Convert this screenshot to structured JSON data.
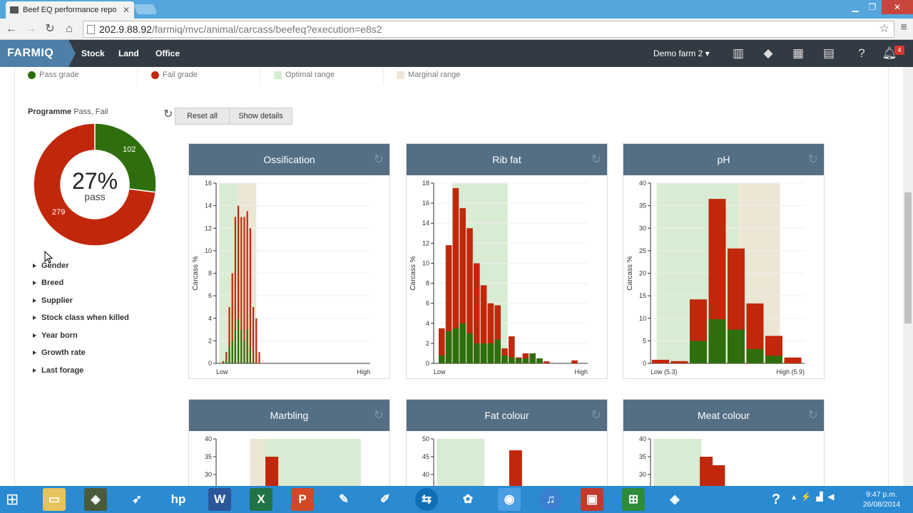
{
  "browser": {
    "tab_title": "Beef EQ performance repo",
    "url_host": "202.9.88.92",
    "url_path": "/farmiq/mvc/animal/carcass/beefeq?execution=e8s2"
  },
  "app": {
    "logo": "FARMIQ",
    "nav": [
      "Stock",
      "Land",
      "Office"
    ],
    "farm": "Demo farm 2",
    "notification_count": "4"
  },
  "legend": [
    "Pass grade",
    "Fail grade",
    "Optimal range",
    "Marginal range"
  ],
  "colors": {
    "pass": "#2f6e0c",
    "fail": "#c1280b",
    "optimal": "#d8ecd3",
    "marginal": "#ece6d4",
    "header": "#546e84"
  },
  "programme": {
    "label": "Programme",
    "value": "Pass, Fail"
  },
  "donut": {
    "pass_count": "102",
    "fail_count": "279",
    "percent": "27%",
    "caption": "pass",
    "pass_fraction": 0.27
  },
  "filters": [
    "Gender",
    "Breed",
    "Supplier",
    "Stock class when killed",
    "Year born",
    "Growth rate",
    "Last forage"
  ],
  "buttons": {
    "reset": "Reset all",
    "details": "Show details"
  },
  "chart_data": [
    {
      "type": "bar",
      "title": "Ossification",
      "ylabel": "Carcass %",
      "x_labels": [
        "Low",
        "High"
      ],
      "ylim": [
        0,
        16
      ],
      "yticks": [
        0,
        2,
        4,
        6,
        8,
        10,
        12,
        14,
        16
      ],
      "bars": [
        [
          0,
          0.2
        ],
        [
          0.2,
          1
        ],
        [
          1.5,
          5
        ],
        [
          2,
          8
        ],
        [
          3,
          13
        ],
        [
          4,
          14
        ],
        [
          3,
          13
        ],
        [
          2,
          13
        ],
        [
          3,
          13.5
        ],
        [
          1.5,
          12
        ],
        [
          0.2,
          5
        ],
        [
          0,
          4
        ],
        [
          0,
          1
        ]
      ],
      "optimal_frac": [
        0.02,
        0.14
      ],
      "marginal_frac": [
        0.14,
        0.26
      ]
    },
    {
      "type": "bar",
      "title": "Rib fat",
      "ylabel": "Carcass %",
      "x_labels": [
        "Low",
        "High"
      ],
      "ylim": [
        0,
        18
      ],
      "yticks": [
        0,
        2,
        4,
        6,
        8,
        10,
        12,
        14,
        16,
        18
      ],
      "bars": [
        [
          0.8,
          3.5
        ],
        [
          3.2,
          11.8
        ],
        [
          3.5,
          17.5
        ],
        [
          4,
          15.5
        ],
        [
          3,
          13.5
        ],
        [
          2,
          10
        ],
        [
          2,
          7.8
        ],
        [
          2,
          6
        ],
        [
          2.4,
          5.8
        ],
        [
          0.8,
          1.5
        ],
        [
          0.6,
          2.7
        ],
        [
          0.5,
          0.6
        ],
        [
          0.5,
          1
        ],
        [
          1,
          1
        ],
        [
          0.5,
          0.5
        ],
        [
          0,
          0.2
        ],
        [
          0,
          0
        ],
        [
          0,
          0
        ],
        [
          0,
          0
        ],
        [
          0,
          0.3
        ]
      ],
      "optimal_frac": [
        0.12,
        0.48
      ],
      "marginal_frac": null
    },
    {
      "type": "bar",
      "title": "pH",
      "ylabel": "Carcass %",
      "x_labels": [
        "Low (5.3)",
        "High (5.9)"
      ],
      "ylim": [
        0,
        40
      ],
      "yticks": [
        0,
        5,
        10,
        15,
        20,
        25,
        30,
        35,
        40
      ],
      "bars": [
        [
          0,
          0.8
        ],
        [
          0,
          0.5
        ],
        [
          5,
          14.2
        ],
        [
          9.8,
          36.5
        ],
        [
          7.5,
          25.5
        ],
        [
          3.2,
          13.3
        ],
        [
          1.7,
          6.1
        ],
        [
          0,
          1.3
        ]
      ],
      "optimal_frac": [
        0.04,
        0.57
      ],
      "marginal_frac": [
        0.57,
        0.84
      ]
    },
    {
      "type": "bar",
      "title": "Marbling",
      "ylim": [
        0,
        40
      ],
      "yticks": [
        30,
        35,
        40
      ]
    },
    {
      "type": "bar",
      "title": "Fat colour",
      "ylim": [
        0,
        50
      ],
      "yticks": [
        40,
        45,
        50
      ]
    },
    {
      "type": "bar",
      "title": "Meat colour",
      "ylim": [
        0,
        40
      ],
      "yticks": [
        30,
        35,
        40
      ]
    }
  ],
  "taskbar": {
    "time": "9:47 p.m.",
    "date": "26/08/2014"
  }
}
